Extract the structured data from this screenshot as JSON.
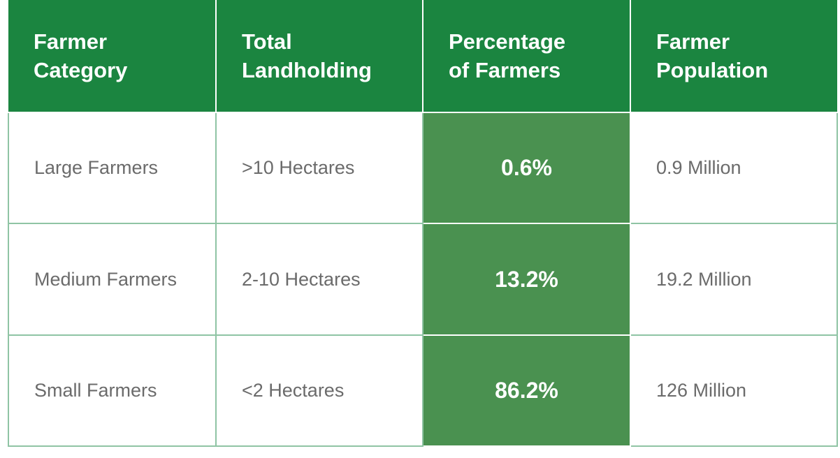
{
  "table": {
    "headers": [
      [
        "Farmer",
        "Category"
      ],
      [
        "Total",
        "Landholding"
      ],
      [
        "Percentage",
        "of Farmers"
      ],
      [
        "Farmer",
        "Population"
      ]
    ],
    "rows": [
      {
        "category": "Large Farmers",
        "landholding": ">10 Hectares",
        "percentage": "0.6%",
        "population": "0.9 Million"
      },
      {
        "category": "Medium Farmers",
        "landholding": "2-10 Hectares",
        "percentage": "13.2%",
        "population": "19.2 Million"
      },
      {
        "category": "Small Farmers",
        "landholding": "<2 Hectares",
        "percentage": "86.2%",
        "population": "126 Million"
      }
    ]
  },
  "colors": {
    "header_bg": "#1b8540",
    "highlight_bg": "#4a9150",
    "body_text": "#6b6b6b",
    "border": "#8fc4a4"
  }
}
